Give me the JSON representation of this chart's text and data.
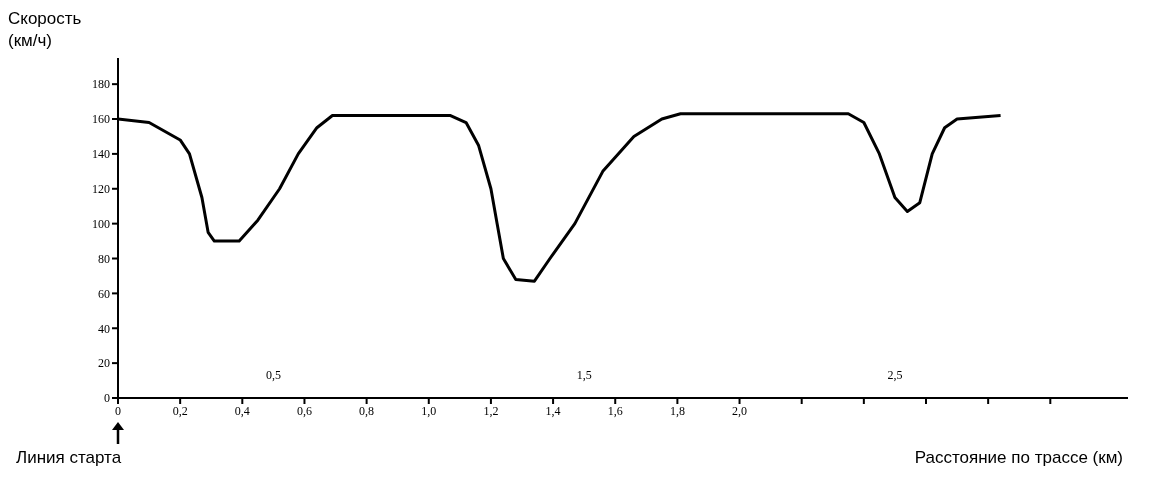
{
  "chart_data": {
    "type": "line",
    "ylabel": "Скорость (км/ч)",
    "xlabel": "Расстояние по трассе (км)",
    "x": [
      0,
      0.1,
      0.2,
      0.23,
      0.27,
      0.29,
      0.31,
      0.39,
      0.45,
      0.52,
      0.58,
      0.64,
      0.69,
      1.07,
      1.12,
      1.16,
      1.2,
      1.22,
      1.24,
      1.28,
      1.34,
      1.39,
      1.47,
      1.56,
      1.66,
      1.75,
      1.81,
      2.35,
      2.4,
      2.45,
      2.5,
      2.54,
      2.58,
      2.62,
      2.66,
      2.7,
      2.84
    ],
    "series": [
      {
        "color": "#000000",
        "values": [
          160,
          158,
          148,
          140,
          115,
          95,
          90,
          90,
          102,
          120,
          140,
          155,
          162,
          162,
          158,
          145,
          120,
          100,
          80,
          68,
          67,
          80,
          100,
          130,
          150,
          160,
          163,
          163,
          158,
          140,
          115,
          107,
          112,
          140,
          155,
          160,
          162
        ]
      }
    ],
    "xlim": [
      0,
      3.25
    ],
    "xticks": [
      {
        "value": 0,
        "label": "0"
      },
      {
        "value": 0.2,
        "label": "0,2"
      },
      {
        "value": 0.4,
        "label": "0,4"
      },
      {
        "value": 0.6,
        "label": "0,6"
      },
      {
        "value": 0.8,
        "label": "0,8"
      },
      {
        "value": 1.0,
        "label": "1,0"
      },
      {
        "value": 1.2,
        "label": "1,2"
      },
      {
        "value": 1.4,
        "label": "1,4"
      },
      {
        "value": 1.6,
        "label": "1,6"
      },
      {
        "value": 1.8,
        "label": "1,8"
      },
      {
        "value": 2.0,
        "label": "2,0"
      },
      {
        "value": 2.2,
        "label": null
      },
      {
        "value": 2.4,
        "label": null
      },
      {
        "value": 2.6,
        "label": null
      },
      {
        "value": 2.8,
        "label": null
      },
      {
        "value": 3.0,
        "label": null
      }
    ],
    "ylim": [
      0,
      195
    ],
    "yticks": [
      0,
      20,
      40,
      60,
      80,
      100,
      120,
      140,
      160,
      180
    ],
    "x2lim": [
      0,
      3.25
    ],
    "x2ticks": [
      {
        "value": 0.5,
        "label": "0,5"
      },
      {
        "value": 1.5,
        "label": "1,5"
      },
      {
        "value": 2.5,
        "label": "2,5"
      }
    ],
    "annotations": [
      "Линия старта"
    ],
    "grid": false,
    "legend": false,
    "marker": "none",
    "line_style": "solid"
  }
}
